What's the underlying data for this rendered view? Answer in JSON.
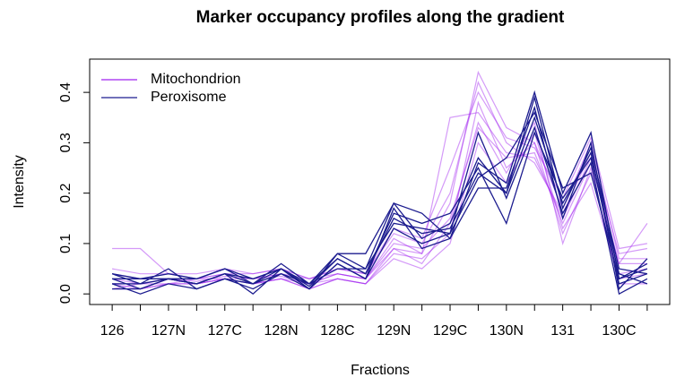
{
  "chart_data": {
    "type": "line",
    "title": "Marker occupancy profiles along the gradient",
    "x_label": "Fractions",
    "y_label": "Intensity",
    "categories": [
      "126",
      null,
      "127N",
      null,
      "127C",
      null,
      "128N",
      null,
      "128C",
      null,
      "129N",
      null,
      "129C",
      null,
      "130N",
      null,
      "131",
      null,
      "130C",
      null
    ],
    "ylim": [
      -0.021,
      0.466
    ],
    "yticks": [
      {
        "value": 0,
        "label": "0.0"
      },
      0.1,
      0.2,
      0.3,
      0.4
    ],
    "legend": "topleft",
    "series": [
      {
        "name": "Mitochondrion",
        "color": "#a020f0",
        "lines": [
          [
            0.02,
            0.02,
            0.03,
            0.025,
            0.035,
            0.03,
            0.035,
            0.02,
            0.04,
            0.03,
            0.1,
            0.09,
            0.15,
            0.33,
            0.27,
            0.28,
            0.14,
            0.26,
            0.06,
            0.06
          ],
          [
            0.01,
            0.01,
            0.02,
            0.02,
            0.03,
            0.02,
            0.03,
            0.01,
            0.03,
            0.02,
            0.08,
            0.07,
            0.12,
            0.38,
            0.25,
            0.3,
            0.12,
            0.24,
            0.04,
            0.05
          ],
          [
            0.04,
            0.03,
            0.03,
            0.03,
            0.04,
            0.03,
            0.04,
            0.03,
            0.05,
            0.04,
            0.12,
            0.1,
            0.2,
            0.42,
            0.3,
            0.26,
            0.16,
            0.28,
            0.08,
            0.09
          ],
          [
            0.09,
            0.09,
            0.04,
            0.03,
            0.03,
            0.02,
            0.03,
            0.02,
            0.03,
            0.02,
            0.07,
            0.05,
            0.1,
            0.3,
            0.22,
            0.32,
            0.13,
            0.22,
            0.03,
            0.04
          ],
          [
            0.02,
            0.01,
            0.02,
            0.03,
            0.04,
            0.04,
            0.05,
            0.03,
            0.04,
            0.03,
            0.11,
            0.08,
            0.35,
            0.36,
            0.28,
            0.27,
            0.15,
            0.27,
            0.06,
            0.14
          ],
          [
            0.03,
            0.02,
            0.03,
            0.02,
            0.03,
            0.03,
            0.04,
            0.02,
            0.04,
            0.03,
            0.09,
            0.08,
            0.18,
            0.44,
            0.33,
            0.3,
            0.17,
            0.3,
            0.07,
            0.07
          ],
          [
            0.01,
            0.02,
            0.02,
            0.02,
            0.03,
            0.02,
            0.03,
            0.01,
            0.03,
            0.02,
            0.09,
            0.06,
            0.14,
            0.34,
            0.24,
            0.34,
            0.1,
            0.25,
            0.02,
            0.02
          ],
          [
            0.05,
            0.04,
            0.04,
            0.04,
            0.05,
            0.04,
            0.05,
            0.03,
            0.05,
            0.04,
            0.13,
            0.11,
            0.25,
            0.4,
            0.31,
            0.29,
            0.19,
            0.31,
            0.09,
            0.1
          ]
        ]
      },
      {
        "name": "Peroxisome",
        "color": "#1c1c8f",
        "lines": [
          [
            0.03,
            0.01,
            0.03,
            0.02,
            0.04,
            0.02,
            0.05,
            0.015,
            0.07,
            0.04,
            0.15,
            0.12,
            0.13,
            0.24,
            0.2,
            0.35,
            0.18,
            0.28,
            0.02,
            0.04
          ],
          [
            0.04,
            0.03,
            0.03,
            0.03,
            0.05,
            0.03,
            0.05,
            0.02,
            0.08,
            0.05,
            0.18,
            0.16,
            0.11,
            0.26,
            0.22,
            0.4,
            0.2,
            0.32,
            0.03,
            0.05
          ],
          [
            0.02,
            0.0,
            0.02,
            0.01,
            0.03,
            0.01,
            0.04,
            0.01,
            0.06,
            0.03,
            0.13,
            0.1,
            0.12,
            0.32,
            0.19,
            0.33,
            0.16,
            0.26,
            0.0,
            0.03
          ],
          [
            0.01,
            0.01,
            0.03,
            0.02,
            0.04,
            0.0,
            0.05,
            0.01,
            0.06,
            0.03,
            0.17,
            0.09,
            0.11,
            0.21,
            0.21,
            0.37,
            0.15,
            0.3,
            0.01,
            0.07
          ],
          [
            0.03,
            0.03,
            0.04,
            0.03,
            0.05,
            0.02,
            0.06,
            0.02,
            0.07,
            0.04,
            0.16,
            0.14,
            0.16,
            0.25,
            0.14,
            0.32,
            0.19,
            0.27,
            0.04,
            0.02
          ],
          [
            0.02,
            0.02,
            0.05,
            0.01,
            0.03,
            0.02,
            0.04,
            0.02,
            0.05,
            0.05,
            0.14,
            0.13,
            0.12,
            0.23,
            0.27,
            0.36,
            0.21,
            0.24,
            0.03,
            0.06
          ],
          [
            0.04,
            0.02,
            0.03,
            0.02,
            0.04,
            0.03,
            0.05,
            0.01,
            0.08,
            0.08,
            0.18,
            0.11,
            0.14,
            0.27,
            0.2,
            0.39,
            0.17,
            0.29,
            0.05,
            0.04
          ]
        ]
      }
    ]
  }
}
